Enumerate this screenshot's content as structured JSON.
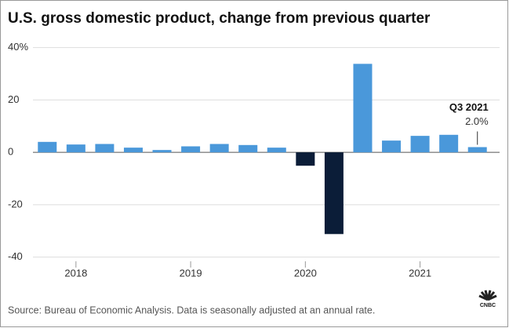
{
  "chart_data": {
    "type": "bar",
    "title": "U.S. gross domestic product, change from previous quarter",
    "categories": [
      null,
      "2018",
      null,
      null,
      null,
      "2019",
      null,
      null,
      null,
      "2020",
      null,
      null,
      null,
      "2021",
      null,
      null
    ],
    "values": [
      4.0,
      3.0,
      3.2,
      1.8,
      0.9,
      2.3,
      3.2,
      2.8,
      1.8,
      -5.1,
      -31.2,
      33.8,
      4.5,
      6.3,
      6.7,
      2.0
    ],
    "value_labels": [
      null,
      null,
      null,
      null,
      null,
      null,
      null,
      null,
      null,
      null,
      null,
      null,
      null,
      null,
      null,
      "2.0%"
    ],
    "color": "#4a98da",
    "negative_color": "#0b1d38",
    "ylim": [
      -44,
      42
    ],
    "yticks": [
      {
        "value": 40,
        "label": "40%"
      },
      20,
      0,
      -20,
      -40
    ],
    "grid": true,
    "annotation": "Q3 2021",
    "source": "Source: Bureau of Economic Analysis. Data is seasonally adjusted at an annual rate.",
    "logo": "CNBC"
  }
}
